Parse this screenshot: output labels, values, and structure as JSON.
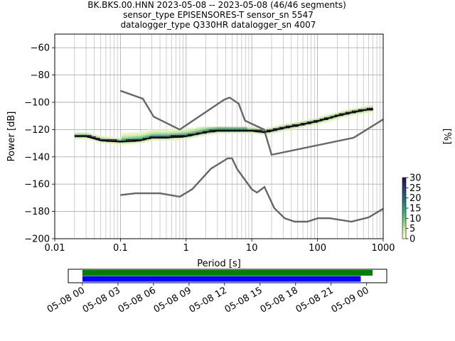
{
  "title_lines": [
    "BK.BKS.00.HNN   2023-05-08 -- 2023-05-08  (46/46 segments)",
    "sensor_type EPISENSORES-T sensor_sn 5547",
    "datalogger_type Q330HR datalogger_sn 4007"
  ],
  "chart_data": [
    {
      "type": "heatmap",
      "title": "BK.BKS.00.HNN   2023-05-08 -- 2023-05-08  (46/46 segments)",
      "xlabel": "Period [s]",
      "ylabel": "Power [dB]",
      "xscale": "log",
      "xlim": [
        0.01,
        1000
      ],
      "ylim": [
        -200,
        -50
      ],
      "x_ticks": [
        0.01,
        0.1,
        1,
        10,
        100,
        1000
      ],
      "x_tick_labels": [
        "0.01",
        "0.1",
        "1",
        "10",
        "100",
        "1000"
      ],
      "y_ticks": [
        -200,
        -180,
        -160,
        -140,
        -120,
        -100,
        -80,
        -60
      ],
      "y_tick_labels": [
        "−200",
        "−180",
        "−160",
        "−140",
        "−120",
        "−100",
        "−80",
        "−60"
      ],
      "grid": true,
      "colorbar": {
        "label": "[%]",
        "range": [
          0,
          30
        ],
        "ticks": [
          0,
          5,
          10,
          15,
          20,
          25,
          30
        ],
        "colors": [
          "#ffffe0",
          "#c9e8a0",
          "#6cc27a",
          "#2e9e7d",
          "#23677e",
          "#2d3a78",
          "#2a0f3b"
        ]
      },
      "mode_curve": {
        "x": [
          0.02,
          0.03,
          0.05,
          0.1,
          0.2,
          0.3,
          0.5,
          1,
          2,
          3,
          5,
          10,
          15,
          20,
          30,
          50,
          100,
          200,
          300,
          500,
          700
        ],
        "y": [
          -125,
          -125,
          -128,
          -129,
          -128,
          -126,
          -126,
          -125,
          -122,
          -121,
          -121,
          -121,
          -122,
          -121,
          -119,
          -117,
          -114,
          -110,
          -108,
          -106,
          -105
        ]
      },
      "nhnm": {
        "x": [
          0.1,
          0.22,
          0.32,
          0.8,
          3.8,
          4.6,
          6.3,
          7.9,
          15.4,
          20,
          354.8,
          1000
        ],
        "y": [
          -91.5,
          -97.4,
          -110.5,
          -120,
          -98,
          -96.5,
          -101,
          -113.5,
          -120,
          -138.5,
          -126,
          -112.5
        ]
      },
      "nlnm": {
        "x": [
          0.1,
          0.17,
          0.4,
          0.8,
          1.24,
          2.4,
          4.3,
          5,
          6,
          10,
          12,
          15.6,
          21.9,
          31.6,
          45,
          70,
          101,
          154,
          328,
          600,
          1000
        ],
        "y": [
          -168,
          -166.7,
          -166.7,
          -169.2,
          -163.7,
          -148.6,
          -141.1,
          -141.1,
          -149,
          -163.8,
          -166.2,
          -162.1,
          -177.5,
          -185,
          -187.5,
          -187.5,
          -185,
          -185,
          -187.5,
          -184.4,
          -178
        ]
      },
      "x_spread": [
        0.1,
        0.15,
        0.2,
        0.3,
        0.5,
        1,
        2,
        3,
        5,
        8
      ],
      "y_spread_top": [
        -123,
        -118,
        -112,
        -108,
        -116,
        -121,
        -119,
        -119,
        -119,
        -119
      ]
    },
    {
      "type": "bar",
      "title": "",
      "xlabel": "",
      "ylabel": "",
      "x_tick_labels": [
        "05-08 00",
        "05-08 03",
        "05-08 06",
        "05-08 09",
        "05-08 12",
        "05-08 15",
        "05-08 18",
        "05-08 21",
        "05-09 00"
      ],
      "xlim_hours": [
        -1.2,
        25.7
      ],
      "series": [
        {
          "color": "#008000",
          "start_hours": 0.0,
          "end_hours": 24.5
        },
        {
          "color": "#0000ff",
          "start_hours": 0.0,
          "end_hours": 23.5
        }
      ]
    }
  ]
}
